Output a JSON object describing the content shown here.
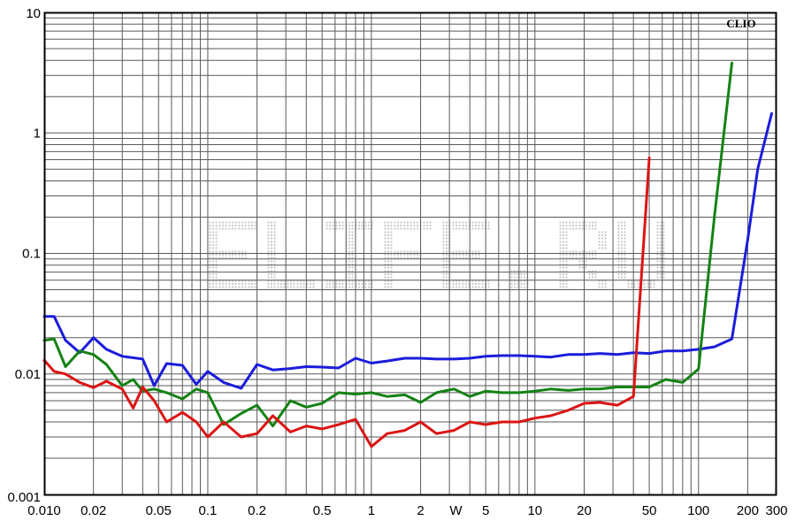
{
  "chart_data": {
    "type": "line",
    "title": "",
    "xlabel": "",
    "ylabel": "",
    "brand": "CLIO",
    "watermark": "ELIFE.RU",
    "xscale": "log",
    "yscale": "log",
    "xlim": [
      0.01,
      300
    ],
    "ylim": [
      0.001,
      10
    ],
    "grid": true,
    "legend": "none",
    "x_ticks": [
      {
        "value": 0.01,
        "label": "0.010"
      },
      {
        "value": 0.02,
        "label": "0.02"
      },
      {
        "value": 0.05,
        "label": "0.05"
      },
      {
        "value": 0.1,
        "label": "0.1"
      },
      {
        "value": 0.2,
        "label": "0.2"
      },
      {
        "value": 0.5,
        "label": "0.5"
      },
      {
        "value": 1,
        "label": "1"
      },
      {
        "value": 2,
        "label": "2"
      },
      {
        "value": 5,
        "label": "5"
      },
      {
        "value": 10,
        "label": "10"
      },
      {
        "value": 20,
        "label": "20"
      },
      {
        "value": 50,
        "label": "50"
      },
      {
        "value": 100,
        "label": "100"
      },
      {
        "value": 200,
        "label": "200"
      },
      {
        "value": 300,
        "label": "300"
      }
    ],
    "x_unit": {
      "value": 3.5,
      "label": "W"
    },
    "y_ticks": [
      {
        "value": 10,
        "label": "10"
      },
      {
        "value": 1,
        "label": "1"
      },
      {
        "value": 0.1,
        "label": "0.1"
      },
      {
        "value": 0.01,
        "label": "0.01"
      },
      {
        "value": 0.001,
        "label": "0.001"
      }
    ],
    "series": [
      {
        "color": "#1c1cdc",
        "points": [
          [
            0.01,
            0.03
          ],
          [
            0.0115,
            0.03
          ],
          [
            0.0135,
            0.019
          ],
          [
            0.0165,
            0.015
          ],
          [
            0.02,
            0.02
          ],
          [
            0.024,
            0.016
          ],
          [
            0.03,
            0.014
          ],
          [
            0.04,
            0.0133
          ],
          [
            0.047,
            0.008
          ],
          [
            0.056,
            0.0122
          ],
          [
            0.07,
            0.0118
          ],
          [
            0.085,
            0.0082
          ],
          [
            0.1,
            0.0105
          ],
          [
            0.125,
            0.0085
          ],
          [
            0.16,
            0.0076
          ],
          [
            0.2,
            0.012
          ],
          [
            0.25,
            0.0108
          ],
          [
            0.32,
            0.0111
          ],
          [
            0.4,
            0.0115
          ],
          [
            0.5,
            0.0114
          ],
          [
            0.63,
            0.0112
          ],
          [
            0.8,
            0.0135
          ],
          [
            1.0,
            0.0123
          ],
          [
            1.25,
            0.0128
          ],
          [
            1.6,
            0.0135
          ],
          [
            2.0,
            0.0135
          ],
          [
            2.5,
            0.0133
          ],
          [
            3.2,
            0.0133
          ],
          [
            4.0,
            0.0135
          ],
          [
            5.0,
            0.014
          ],
          [
            6.3,
            0.0142
          ],
          [
            8.0,
            0.0142
          ],
          [
            10,
            0.014
          ],
          [
            12.5,
            0.0138
          ],
          [
            16,
            0.0145
          ],
          [
            20,
            0.0145
          ],
          [
            25,
            0.0148
          ],
          [
            32,
            0.0145
          ],
          [
            40,
            0.015
          ],
          [
            50,
            0.0148
          ],
          [
            63,
            0.0155
          ],
          [
            80,
            0.0155
          ],
          [
            100,
            0.016
          ],
          [
            125,
            0.0168
          ],
          [
            160,
            0.0195
          ],
          [
            200,
            0.13
          ],
          [
            230,
            0.5
          ],
          [
            280,
            1.45
          ]
        ]
      },
      {
        "color": "#148214",
        "points": [
          [
            0.01,
            0.019
          ],
          [
            0.0115,
            0.0195
          ],
          [
            0.0135,
            0.0115
          ],
          [
            0.0165,
            0.0155
          ],
          [
            0.02,
            0.0145
          ],
          [
            0.024,
            0.012
          ],
          [
            0.03,
            0.008
          ],
          [
            0.035,
            0.009
          ],
          [
            0.04,
            0.0072
          ],
          [
            0.047,
            0.0075
          ],
          [
            0.056,
            0.007
          ],
          [
            0.07,
            0.0062
          ],
          [
            0.085,
            0.0075
          ],
          [
            0.1,
            0.007
          ],
          [
            0.125,
            0.0038
          ],
          [
            0.16,
            0.0047
          ],
          [
            0.2,
            0.0055
          ],
          [
            0.25,
            0.0037
          ],
          [
            0.32,
            0.006
          ],
          [
            0.4,
            0.0053
          ],
          [
            0.5,
            0.0057
          ],
          [
            0.63,
            0.007
          ],
          [
            0.8,
            0.0068
          ],
          [
            1.0,
            0.007
          ],
          [
            1.25,
            0.0065
          ],
          [
            1.6,
            0.0067
          ],
          [
            2.0,
            0.0058
          ],
          [
            2.5,
            0.007
          ],
          [
            3.2,
            0.0075
          ],
          [
            4.0,
            0.0065
          ],
          [
            5.0,
            0.0072
          ],
          [
            6.3,
            0.007
          ],
          [
            8.0,
            0.007
          ],
          [
            10,
            0.0072
          ],
          [
            12.5,
            0.0075
          ],
          [
            16,
            0.0073
          ],
          [
            20,
            0.0075
          ],
          [
            25,
            0.0075
          ],
          [
            32,
            0.0078
          ],
          [
            40,
            0.0078
          ],
          [
            50,
            0.0078
          ],
          [
            63,
            0.009
          ],
          [
            80,
            0.0085
          ],
          [
            100,
            0.011
          ],
          [
            125,
            0.2
          ],
          [
            160,
            3.8
          ]
        ]
      },
      {
        "color": "#dc1414",
        "points": [
          [
            0.01,
            0.013
          ],
          [
            0.0115,
            0.0105
          ],
          [
            0.0135,
            0.01
          ],
          [
            0.0165,
            0.0085
          ],
          [
            0.02,
            0.0077
          ],
          [
            0.024,
            0.0087
          ],
          [
            0.03,
            0.0075
          ],
          [
            0.035,
            0.0052
          ],
          [
            0.04,
            0.0078
          ],
          [
            0.047,
            0.006
          ],
          [
            0.056,
            0.004
          ],
          [
            0.07,
            0.0048
          ],
          [
            0.085,
            0.004
          ],
          [
            0.1,
            0.003
          ],
          [
            0.125,
            0.004
          ],
          [
            0.16,
            0.003
          ],
          [
            0.2,
            0.0032
          ],
          [
            0.25,
            0.0045
          ],
          [
            0.32,
            0.0033
          ],
          [
            0.4,
            0.0037
          ],
          [
            0.5,
            0.0035
          ],
          [
            0.63,
            0.0038
          ],
          [
            0.8,
            0.0042
          ],
          [
            1.0,
            0.0025
          ],
          [
            1.25,
            0.0032
          ],
          [
            1.6,
            0.0034
          ],
          [
            2.0,
            0.004
          ],
          [
            2.5,
            0.0032
          ],
          [
            3.2,
            0.0034
          ],
          [
            4.0,
            0.004
          ],
          [
            5.0,
            0.0038
          ],
          [
            6.3,
            0.004
          ],
          [
            8.0,
            0.004
          ],
          [
            10,
            0.0043
          ],
          [
            12.5,
            0.0045
          ],
          [
            16,
            0.005
          ],
          [
            20,
            0.0057
          ],
          [
            25,
            0.0058
          ],
          [
            32,
            0.0055
          ],
          [
            40,
            0.0065
          ],
          [
            50,
            0.62
          ]
        ]
      }
    ]
  }
}
